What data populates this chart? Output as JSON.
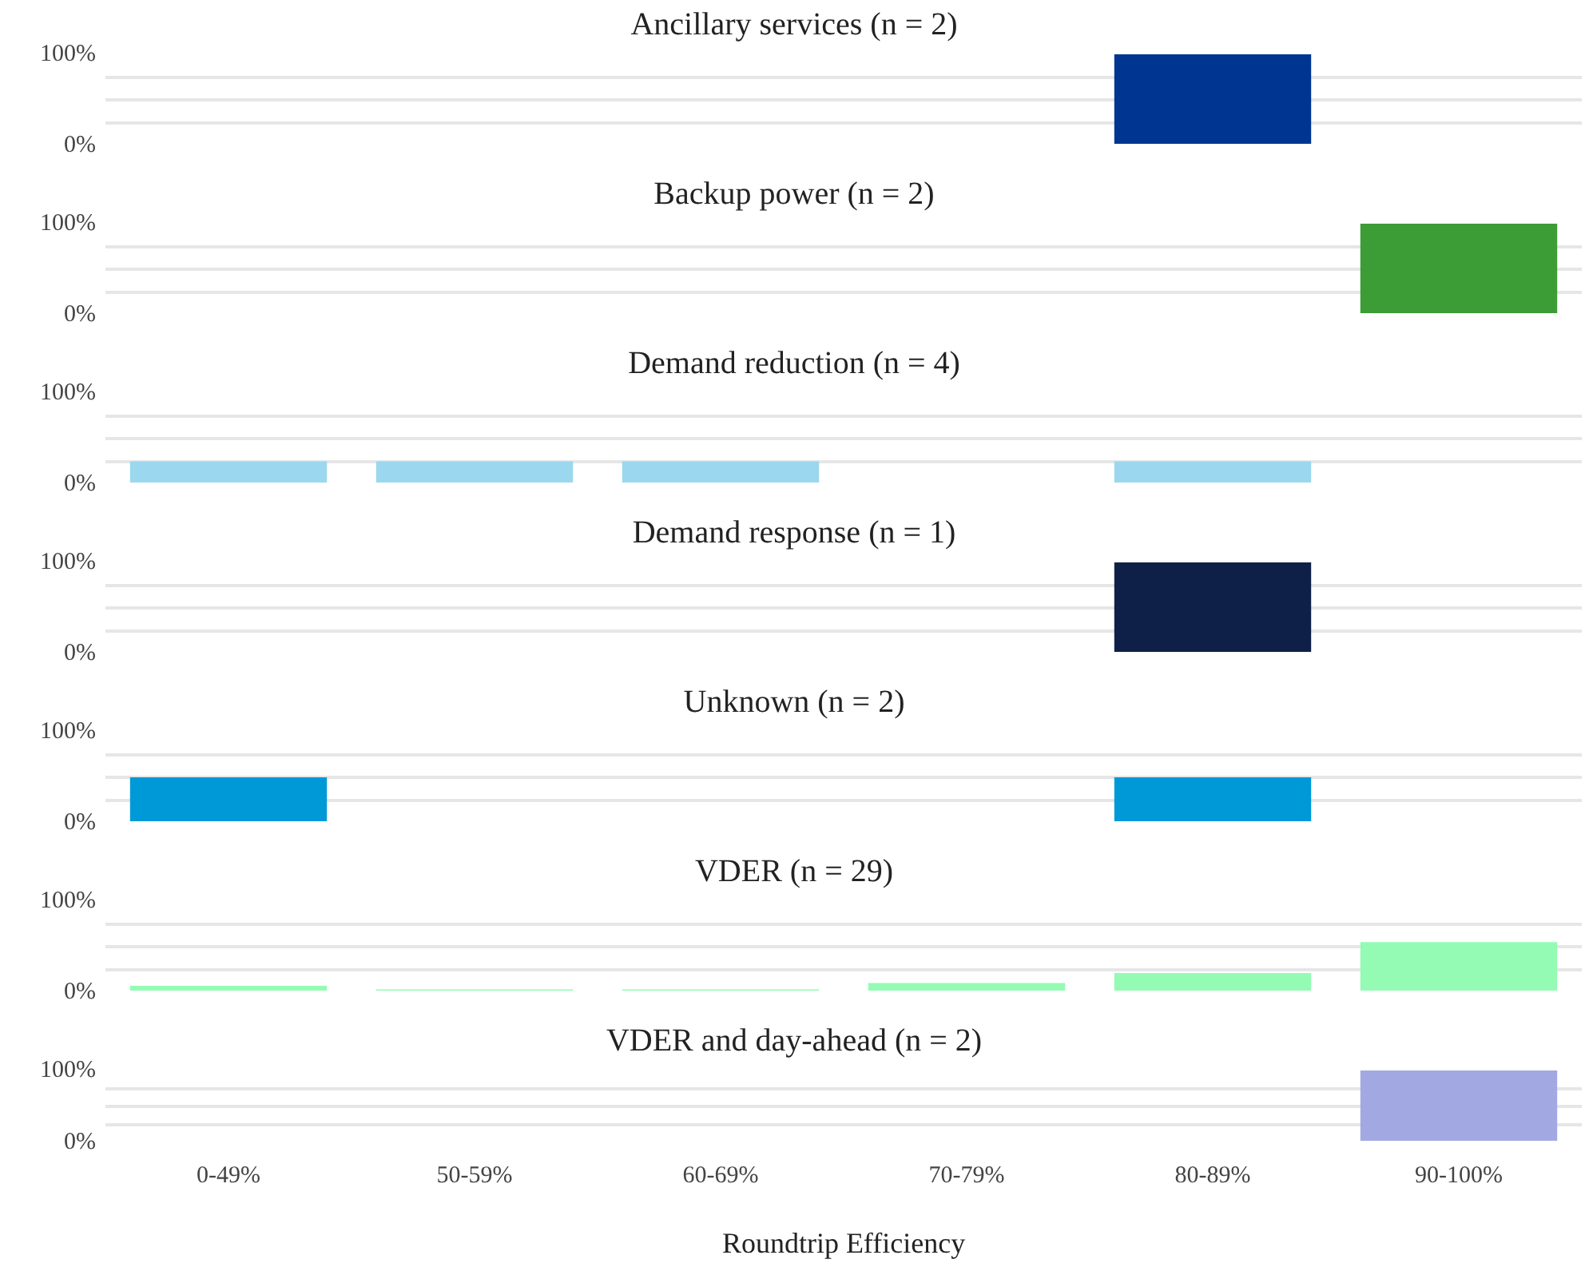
{
  "chart_data": [
    {
      "type": "bar",
      "title": "Ancillary services (n = 2)",
      "categories": [
        null,
        null,
        null,
        null,
        null,
        null
      ],
      "values": [
        0,
        0,
        0,
        0,
        100,
        0
      ],
      "color": "#003591",
      "ylim": [
        0,
        100
      ],
      "yticks": [
        {
          "value": 0,
          "label": "0%"
        },
        {
          "value": 25,
          "label": null
        },
        {
          "value": 50,
          "label": null
        },
        {
          "value": 75,
          "label": null
        },
        {
          "value": 100,
          "label": "100%"
        }
      ],
      "grid": "y",
      "tick_labels": "y"
    },
    {
      "type": "bar",
      "title": "Backup power (n = 2)",
      "categories": [
        null,
        null,
        null,
        null,
        null,
        null
      ],
      "values": [
        0,
        0,
        0,
        0,
        0,
        100
      ],
      "color": "#3c9c35",
      "ylim": [
        0,
        100
      ],
      "yticks": [
        {
          "value": 0,
          "label": "0%"
        },
        {
          "value": 25,
          "label": null
        },
        {
          "value": 50,
          "label": null
        },
        {
          "value": 75,
          "label": null
        },
        {
          "value": 100,
          "label": "100%"
        }
      ],
      "grid": "y",
      "tick_labels": "y"
    },
    {
      "type": "bar",
      "title": "Demand reduction (n = 4)",
      "categories": [
        null,
        null,
        null,
        null,
        null,
        null
      ],
      "values": [
        25,
        25,
        25,
        0,
        25,
        0
      ],
      "color": "#9bd7ee",
      "ylim": [
        0,
        100
      ],
      "yticks": [
        {
          "value": 0,
          "label": "0%"
        },
        {
          "value": 25,
          "label": null
        },
        {
          "value": 50,
          "label": null
        },
        {
          "value": 75,
          "label": null
        },
        {
          "value": 100,
          "label": "100%"
        }
      ],
      "grid": "y",
      "tick_labels": "y"
    },
    {
      "type": "bar",
      "title": "Demand response (n = 1)",
      "categories": [
        null,
        null,
        null,
        null,
        null,
        null
      ],
      "values": [
        0,
        0,
        0,
        0,
        100,
        0
      ],
      "color": "#0f2048",
      "ylim": [
        0,
        100
      ],
      "yticks": [
        {
          "value": 0,
          "label": "0%"
        },
        {
          "value": 25,
          "label": null
        },
        {
          "value": 50,
          "label": null
        },
        {
          "value": 75,
          "label": null
        },
        {
          "value": 100,
          "label": "100%"
        }
      ],
      "grid": "y",
      "tick_labels": "y"
    },
    {
      "type": "bar",
      "title": "Unknown (n = 2)",
      "categories": [
        null,
        null,
        null,
        null,
        null,
        null
      ],
      "values": [
        50,
        0,
        0,
        0,
        50,
        0
      ],
      "color": "#0099d8",
      "ylim": [
        0,
        100
      ],
      "yticks": [
        {
          "value": 0,
          "label": "0%"
        },
        {
          "value": 25,
          "label": null
        },
        {
          "value": 50,
          "label": null
        },
        {
          "value": 75,
          "label": null
        },
        {
          "value": 100,
          "label": "100%"
        }
      ],
      "grid": "y",
      "tick_labels": "y"
    },
    {
      "type": "bar",
      "title": "VDER (n = 29)",
      "categories": [
        null,
        null,
        null,
        null,
        null,
        null
      ],
      "values": [
        7,
        3,
        3,
        10,
        21,
        55
      ],
      "color": "#94fbb4",
      "ylim": [
        0,
        100
      ],
      "yticks": [
        {
          "value": 0,
          "label": "0%"
        },
        {
          "value": 25,
          "label": null
        },
        {
          "value": 50,
          "label": null
        },
        {
          "value": 75,
          "label": null
        },
        {
          "value": 100,
          "label": "100%"
        }
      ],
      "grid": "y",
      "tick_labels": "y"
    },
    {
      "type": "bar",
      "title": "VDER and day-ahead (n = 2)",
      "categories": [
        "0-49%",
        "50-59%",
        "60-69%",
        "70-79%",
        "80-89%",
        "90-100%"
      ],
      "values": [
        0,
        0,
        0,
        0,
        0,
        100
      ],
      "color": "#a2a9e2",
      "xlabel": "Roundtrip Efficiency",
      "ylim": [
        0,
        100
      ],
      "yticks": [
        {
          "value": 0,
          "label": "0%"
        },
        {
          "value": 25,
          "label": null
        },
        {
          "value": 50,
          "label": null
        },
        {
          "value": 75,
          "label": null
        },
        {
          "value": 100,
          "label": "100%"
        }
      ],
      "grid": "y"
    }
  ]
}
